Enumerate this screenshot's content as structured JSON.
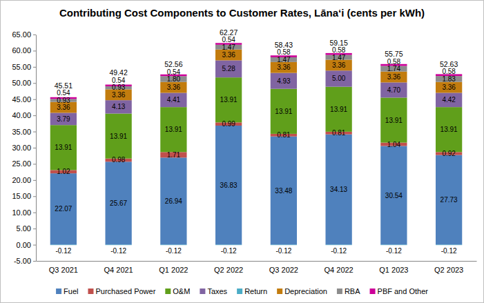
{
  "chart_data": {
    "type": "bar",
    "stacked": true,
    "data_labels": true,
    "grid": false,
    "legend": "bottom",
    "title": "Contributing Cost Components to Customer Rates, Lāna‘i (cents per kWh)",
    "categories": [
      "Q3 2021",
      "Q4 2021",
      "Q1 2022",
      "Q2 2022",
      "Q3 2022",
      "Q4 2022",
      "Q1 2023",
      "Q2 2023"
    ],
    "series": [
      {
        "name": "Fuel",
        "color": "#4f81bd",
        "values": [
          22.07,
          25.67,
          26.94,
          36.83,
          33.48,
          34.13,
          30.54,
          27.73
        ]
      },
      {
        "name": "Purchased Power",
        "color": "#c0504d",
        "values": [
          1.02,
          0.98,
          1.71,
          0.99,
          0.81,
          0.81,
          1.04,
          0.92
        ]
      },
      {
        "name": "O&M",
        "color": "#609f1b",
        "values": [
          13.91,
          13.91,
          13.91,
          13.91,
          13.91,
          13.91,
          13.91,
          13.91
        ]
      },
      {
        "name": "Taxes",
        "color": "#8064a2",
        "values": [
          3.79,
          4.13,
          4.41,
          5.28,
          4.93,
          5.0,
          4.7,
          4.42
        ],
        "value_labels": [
          "3.79",
          "4.13",
          "4.41",
          "5.28",
          "4.93",
          "5.00",
          "4.70",
          "4.42"
        ]
      },
      {
        "name": "Return",
        "color": "#4bacc6",
        "values": [
          -0.12,
          -0.12,
          -0.12,
          -0.12,
          -0.12,
          -0.12,
          -0.12,
          -0.12
        ]
      },
      {
        "name": "Depreciation",
        "color": "#c27c0e",
        "values": [
          3.36,
          3.36,
          3.36,
          3.36,
          3.36,
          3.36,
          3.36,
          3.36
        ]
      },
      {
        "name": "RBA",
        "color": "#8c8c8c",
        "values": [
          0.93,
          0.93,
          1.8,
          1.47,
          1.47,
          1.47,
          1.74,
          1.83
        ],
        "value_labels": [
          "0.93",
          "0.93",
          "1.80",
          "1.47",
          "1.47",
          "1.47",
          "1.74",
          "1.83"
        ]
      },
      {
        "name": "PBF and Other",
        "color": "#cc0099",
        "values": [
          0.54,
          0.54,
          0.54,
          0.54,
          0.58,
          0.58,
          0.58,
          0.58
        ]
      }
    ],
    "totals": [
      45.51,
      49.42,
      52.56,
      62.27,
      58.43,
      59.15,
      55.75,
      52.63
    ],
    "ylim": [
      -5,
      65
    ],
    "yticks": [
      {
        "value": -5,
        "label": "-5.00"
      },
      {
        "value": 0,
        "label": "0.00"
      },
      {
        "value": 5,
        "label": "5.00"
      },
      {
        "value": 10,
        "label": "10.00"
      },
      {
        "value": 15,
        "label": "15.00"
      },
      {
        "value": 20,
        "label": "20.00"
      },
      {
        "value": 25,
        "label": "25.00"
      },
      {
        "value": 30,
        "label": "30.00"
      },
      {
        "value": 35,
        "label": "35.00"
      },
      {
        "value": 40,
        "label": "40.00"
      },
      {
        "value": 45,
        "label": "45.00"
      },
      {
        "value": 50,
        "label": "50.00"
      },
      {
        "value": 55,
        "label": "55.00"
      },
      {
        "value": 60,
        "label": "60.00"
      },
      {
        "value": 65,
        "label": "65.00"
      }
    ]
  }
}
